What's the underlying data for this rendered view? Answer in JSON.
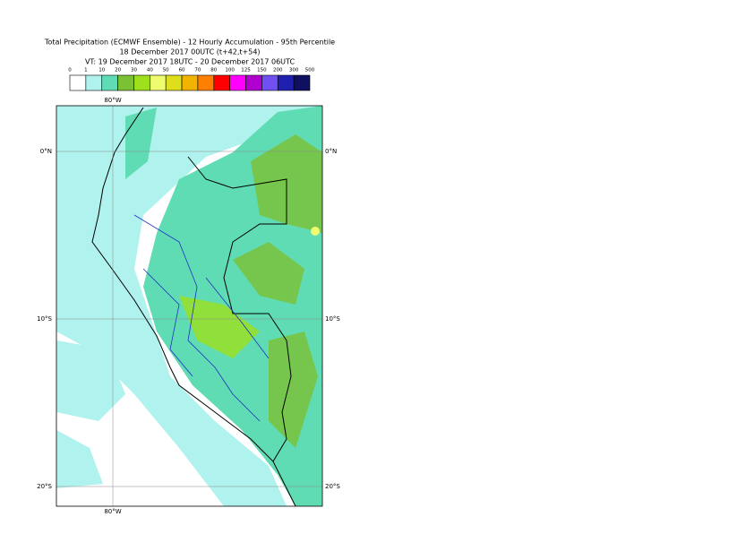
{
  "header": {
    "title": "Total Precipitation (ECMWF Ensemble) - 12 Hourly Accumulation - 95th Percentile",
    "base_time": "18 December 2017 00UTC (t+42,t+54)",
    "valid_time": "VT: 19 December 2017 18UTC - 20 December 2017 06UTC"
  },
  "legend": {
    "labels": [
      "0",
      "1",
      "10",
      "20",
      "30",
      "40",
      "50",
      "60",
      "70",
      "80",
      "100",
      "125",
      "150",
      "200",
      "300",
      "500"
    ],
    "colors": [
      "#ffffff",
      "#b0f2ee",
      "#60dcb4",
      "#7cc034",
      "#9ee01c",
      "#eefc70",
      "#dede1c",
      "#f2b200",
      "#ff8000",
      "#ff0000",
      "#ff00ff",
      "#b000d0",
      "#7050f0",
      "#2020b0",
      "#101060"
    ]
  },
  "map": {
    "lon_label": "80°W",
    "lat_labels": [
      "0°N",
      "10°S",
      "20°S"
    ]
  }
}
